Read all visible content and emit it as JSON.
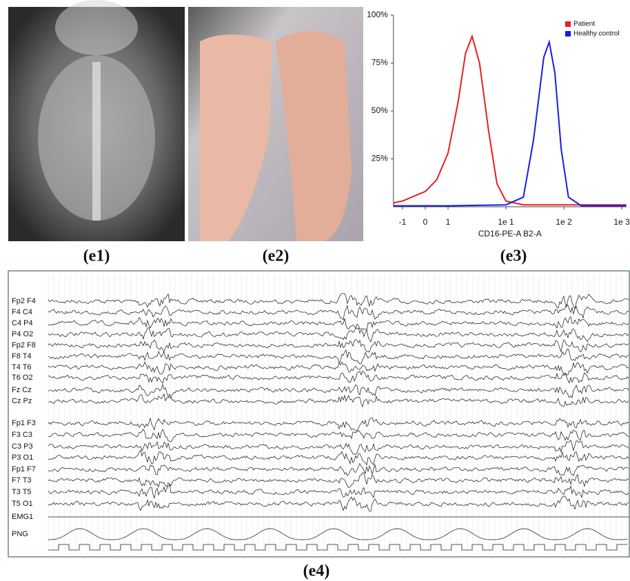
{
  "panels": [
    "(e1)",
    "(e2)",
    "(e3)",
    "(e4)"
  ],
  "chart_data": {
    "type": "line",
    "x_label": "CD16-PE-A B2-A",
    "xscale": "biexponential",
    "xlim": [
      -1.4,
      1200
    ],
    "xticks": [
      -1,
      0,
      1,
      {
        "value": 10,
        "label": "1e 1"
      },
      {
        "value": 100,
        "label": "1e 2"
      },
      {
        "value": 1000,
        "label": "1e 3"
      }
    ],
    "ylim": [
      0,
      100
    ],
    "yticks": [
      {
        "value": 25,
        "label": "25%"
      },
      {
        "value": 50,
        "label": "50%"
      },
      {
        "value": 75,
        "label": "75%"
      },
      {
        "value": 100,
        "label": "100%"
      }
    ],
    "legend": "top-right",
    "series": [
      {
        "name": "Patient",
        "color": "#ee1c1c",
        "x": [
          -1.4,
          -1,
          0,
          0.5,
          1,
          1.5,
          2,
          2.6,
          3.5,
          5,
          7,
          10,
          20,
          100,
          1000,
          1200
        ],
        "values": [
          2,
          3,
          8,
          14,
          28,
          55,
          80,
          89,
          75,
          40,
          12,
          3,
          1,
          1,
          1,
          1
        ]
      },
      {
        "name": "Healthy control",
        "color": "#1a1ae6",
        "x": [
          -1.4,
          1,
          10,
          20,
          30,
          45,
          56,
          70,
          90,
          120,
          200,
          1000,
          1200
        ],
        "values": [
          0.5,
          0.5,
          1,
          5,
          35,
          78,
          86,
          70,
          30,
          5,
          0.5,
          0.5,
          0.5
        ]
      }
    ]
  },
  "eeg": {
    "channels": [
      "Fp2 F4",
      "F4  C4",
      "C4  P4",
      "P4  O2",
      "Fp2 F8",
      "F8  T4",
      "T4  T6",
      "T6  O2",
      "Fz  Cz",
      "Cz  Pz",
      "Fp1 F3",
      "F3  C3",
      "C3  P3",
      "P3  O1",
      "Fp1 F7",
      "F7  T3",
      "T3  T5",
      "T5  O1",
      "EMG1",
      "PNG"
    ]
  }
}
